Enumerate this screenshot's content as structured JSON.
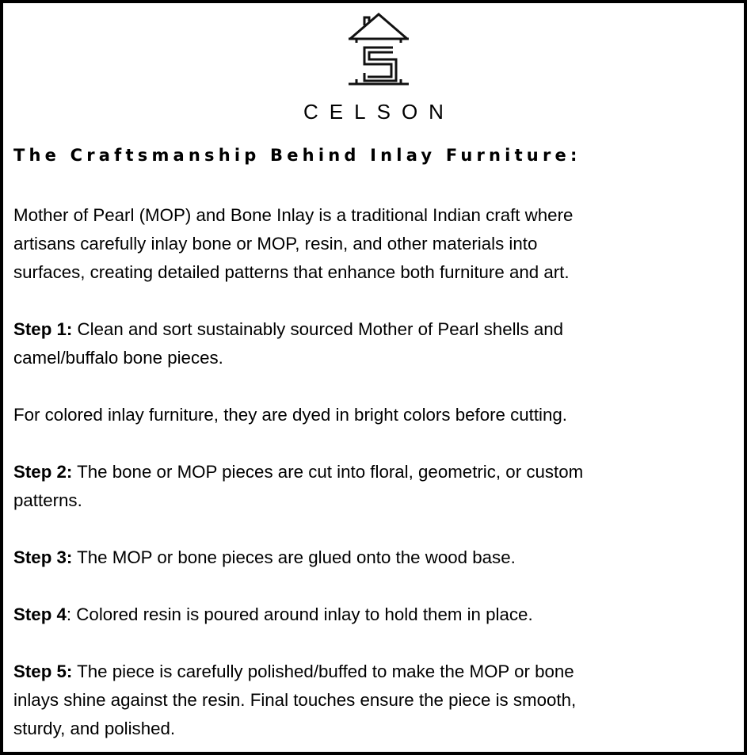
{
  "brand": {
    "name": "CELSON",
    "logo_icon": "house-with-c-s-monogram-icon"
  },
  "heading": "The Craftsmanship Behind Inlay Furniture:",
  "intro": [
    "Mother of Pearl (MOP) and Bone Inlay is a traditional Indian craft where",
    "artisans carefully inlay bone or MOP, resin, and other materials into",
    "surfaces, creating detailed patterns that enhance both furniture and art."
  ],
  "step1": {
    "label": "Step 1:",
    "lines": [
      " Clean and sort sustainably sourced Mother of Pearl shells and",
      "camel/buffalo bone pieces."
    ]
  },
  "note": "For colored inlay furniture, they are dyed in bright colors before cutting.",
  "step2": {
    "label": "Step 2:",
    "lines": [
      " The bone or MOP pieces are cut into floral, geometric, or custom",
      "patterns."
    ]
  },
  "step3": {
    "label": "Step 3:",
    "lines": [
      " The MOP or bone pieces are glued onto the wood base."
    ]
  },
  "step4": {
    "label": "Step 4",
    "lines": [
      ": Colored resin is poured around inlay to hold them in place."
    ]
  },
  "step5": {
    "label": "Step 5:",
    "lines": [
      " The piece is carefully polished/buffed to make the MOP or bone",
      "inlays shine against the resin. Final touches ensure the piece is smooth,",
      "sturdy, and polished."
    ]
  }
}
